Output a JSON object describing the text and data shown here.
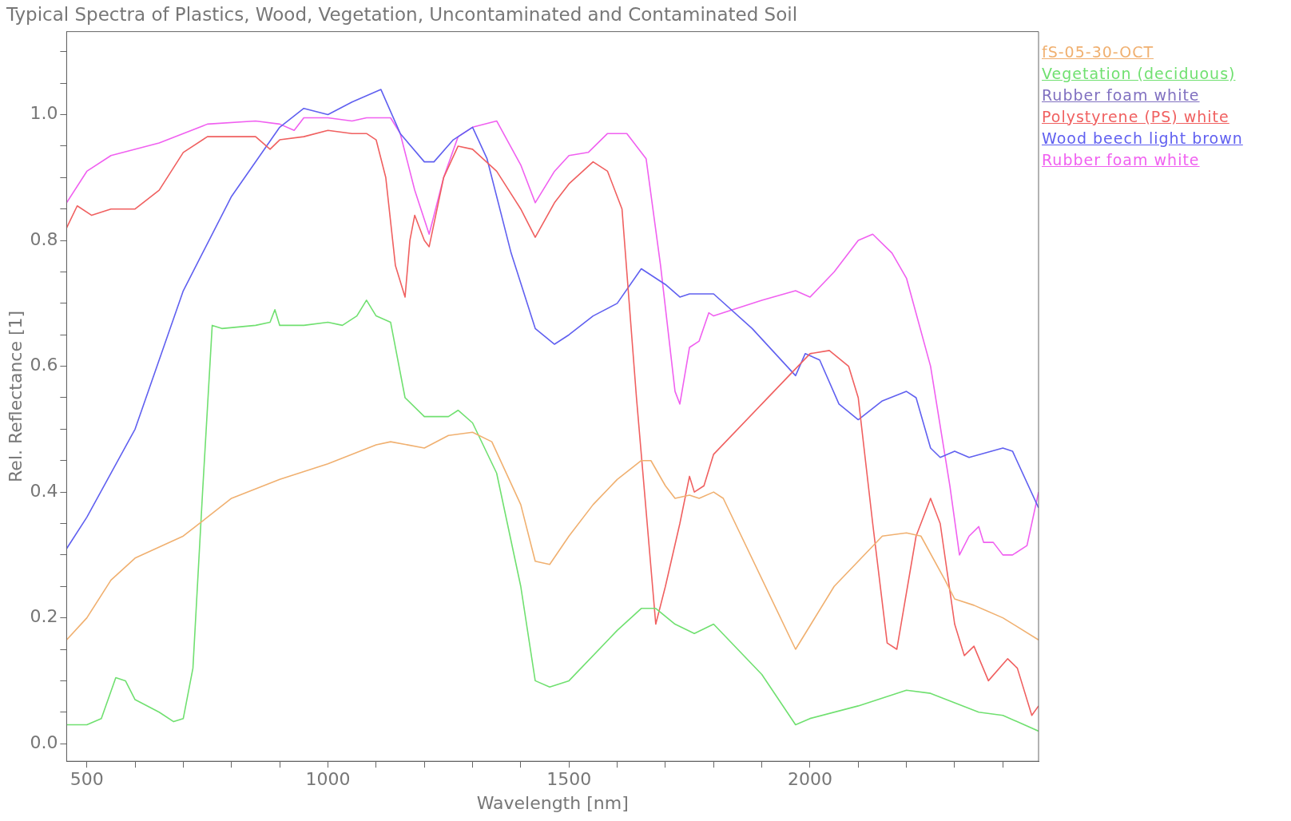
{
  "chart_data": {
    "type": "line",
    "title": "Typical Spectra of Plastics, Wood, Vegetation, Uncontaminated and Contaminated Soil",
    "xlabel": "Wavelength [nm]",
    "ylabel": "Rel. Reflectance [1]",
    "xlim": [
      458,
      2474
    ],
    "ylim": [
      -0.028,
      1.132
    ],
    "xticks": [
      500,
      {
        "value": 600,
        "label": null
      },
      {
        "value": 700,
        "label": null
      },
      {
        "value": 800,
        "label": null
      },
      {
        "value": 900,
        "label": null
      },
      1000,
      {
        "value": 1100,
        "label": null
      },
      {
        "value": 1200,
        "label": null
      },
      {
        "value": 1300,
        "label": null
      },
      {
        "value": 1400,
        "label": null
      },
      1500,
      {
        "value": 1600,
        "label": null
      },
      {
        "value": 1700,
        "label": null
      },
      {
        "value": 1800,
        "label": null
      },
      {
        "value": 1900,
        "label": null
      },
      2000,
      {
        "value": 2100,
        "label": null
      },
      {
        "value": 2200,
        "label": null
      },
      {
        "value": 2300,
        "label": null
      },
      {
        "value": 2400,
        "label": null
      }
    ],
    "yticks": [
      {
        "value": 0,
        "label": "0.0"
      },
      {
        "value": 0.05,
        "label": null
      },
      {
        "value": 0.1,
        "label": null
      },
      {
        "value": 0.15,
        "label": null
      },
      0.2,
      {
        "value": 0.25,
        "label": null
      },
      {
        "value": 0.3,
        "label": null
      },
      {
        "value": 0.35,
        "label": null
      },
      0.4,
      {
        "value": 0.45,
        "label": null
      },
      {
        "value": 0.5,
        "label": null
      },
      {
        "value": 0.55,
        "label": null
      },
      0.6,
      {
        "value": 0.65,
        "label": null
      },
      {
        "value": 0.7,
        "label": null
      },
      {
        "value": 0.75,
        "label": null
      },
      0.8,
      {
        "value": 0.85,
        "label": null
      },
      {
        "value": 0.9,
        "label": null
      },
      {
        "value": 0.95,
        "label": null
      },
      {
        "value": 1,
        "label": "1.0"
      },
      {
        "value": 1.05,
        "label": null
      },
      {
        "value": 1.1,
        "label": null
      }
    ],
    "grid": false,
    "legend": "right",
    "marker": "none",
    "line_style": "solid",
    "series": [
      {
        "name": "fS-05-30-OCT",
        "color": "#f0b070",
        "x": [
          458,
          500,
          550,
          600,
          700,
          800,
          900,
          1000,
          1100,
          1130,
          1200,
          1250,
          1300,
          1340,
          1400,
          1430,
          1460,
          1500,
          1550,
          1600,
          1650,
          1670,
          1700,
          1720,
          1750,
          1770,
          1800,
          1820,
          1970,
          2050,
          2150,
          2200,
          2230,
          2280,
          2300,
          2340,
          2400,
          2474
        ],
        "values": [
          0.165,
          0.2,
          0.26,
          0.295,
          0.33,
          0.39,
          0.42,
          0.445,
          0.475,
          0.48,
          0.47,
          0.49,
          0.495,
          0.48,
          0.38,
          0.29,
          0.285,
          0.33,
          0.38,
          0.42,
          0.45,
          0.45,
          0.41,
          0.39,
          0.395,
          0.39,
          0.4,
          0.39,
          0.15,
          0.25,
          0.33,
          0.335,
          0.33,
          0.26,
          0.23,
          0.22,
          0.2,
          0.165
        ]
      },
      {
        "name": "Vegetation (deciduous)",
        "color": "#70e070",
        "x": [
          458,
          500,
          530,
          560,
          580,
          600,
          650,
          680,
          700,
          720,
          740,
          760,
          780,
          850,
          880,
          890,
          900,
          950,
          1000,
          1030,
          1060,
          1080,
          1100,
          1130,
          1160,
          1200,
          1250,
          1270,
          1300,
          1350,
          1400,
          1430,
          1460,
          1500,
          1600,
          1650,
          1680,
          1720,
          1760,
          1800,
          1900,
          1970,
          2000,
          2100,
          2200,
          2250,
          2350,
          2400,
          2474
        ],
        "values": [
          0.03,
          0.03,
          0.04,
          0.105,
          0.1,
          0.07,
          0.05,
          0.035,
          0.04,
          0.12,
          0.4,
          0.665,
          0.66,
          0.665,
          0.67,
          0.69,
          0.665,
          0.665,
          0.67,
          0.665,
          0.68,
          0.705,
          0.68,
          0.67,
          0.55,
          0.52,
          0.52,
          0.53,
          0.51,
          0.43,
          0.25,
          0.1,
          0.09,
          0.1,
          0.18,
          0.215,
          0.215,
          0.19,
          0.175,
          0.19,
          0.11,
          0.03,
          0.04,
          0.06,
          0.085,
          0.08,
          0.05,
          0.045,
          0.02
        ]
      },
      {
        "name": "Rubber foam white",
        "color": "#8070c0"
      },
      {
        "name": "Polystyrene (PS) white",
        "color": "#f06060",
        "x": [
          458,
          480,
          510,
          550,
          600,
          650,
          700,
          750,
          850,
          880,
          900,
          950,
          1000,
          1050,
          1080,
          1100,
          1120,
          1140,
          1160,
          1170,
          1180,
          1200,
          1210,
          1240,
          1270,
          1300,
          1350,
          1400,
          1430,
          1470,
          1500,
          1550,
          1580,
          1610,
          1640,
          1680,
          1700,
          1730,
          1750,
          1760,
          1780,
          1800,
          1900,
          2000,
          2040,
          2080,
          2100,
          2130,
          2160,
          2180,
          2220,
          2250,
          2270,
          2300,
          2320,
          2340,
          2370,
          2410,
          2430,
          2460,
          2474
        ],
        "values": [
          0.82,
          0.855,
          0.84,
          0.85,
          0.85,
          0.88,
          0.94,
          0.965,
          0.965,
          0.945,
          0.96,
          0.965,
          0.975,
          0.97,
          0.97,
          0.96,
          0.9,
          0.76,
          0.71,
          0.8,
          0.84,
          0.8,
          0.79,
          0.9,
          0.95,
          0.945,
          0.91,
          0.85,
          0.805,
          0.86,
          0.89,
          0.925,
          0.91,
          0.85,
          0.55,
          0.19,
          0.25,
          0.35,
          0.425,
          0.4,
          0.41,
          0.46,
          0.54,
          0.62,
          0.625,
          0.6,
          0.55,
          0.35,
          0.16,
          0.15,
          0.33,
          0.39,
          0.35,
          0.19,
          0.14,
          0.155,
          0.1,
          0.135,
          0.12,
          0.045,
          0.06
        ]
      },
      {
        "name": "Wood beech light brown",
        "color": "#6060f0",
        "x": [
          458,
          500,
          600,
          700,
          800,
          900,
          950,
          1000,
          1050,
          1110,
          1150,
          1200,
          1220,
          1260,
          1300,
          1330,
          1380,
          1430,
          1470,
          1500,
          1550,
          1600,
          1650,
          1700,
          1730,
          1750,
          1800,
          1880,
          1970,
          1990,
          2020,
          2060,
          2100,
          2150,
          2200,
          2220,
          2250,
          2270,
          2300,
          2330,
          2400,
          2420,
          2474
        ],
        "values": [
          0.31,
          0.36,
          0.5,
          0.72,
          0.87,
          0.98,
          1.01,
          1.0,
          1.02,
          1.04,
          0.97,
          0.925,
          0.925,
          0.96,
          0.98,
          0.93,
          0.78,
          0.66,
          0.635,
          0.65,
          0.68,
          0.7,
          0.755,
          0.73,
          0.71,
          0.715,
          0.715,
          0.66,
          0.585,
          0.62,
          0.61,
          0.54,
          0.515,
          0.545,
          0.56,
          0.55,
          0.47,
          0.455,
          0.465,
          0.455,
          0.47,
          0.465,
          0.375
        ]
      },
      {
        "name": "Rubber foam white",
        "color": "#f060f0",
        "x": [
          458,
          500,
          550,
          650,
          750,
          850,
          900,
          930,
          950,
          1000,
          1050,
          1080,
          1130,
          1150,
          1180,
          1210,
          1240,
          1270,
          1300,
          1350,
          1400,
          1430,
          1470,
          1500,
          1540,
          1580,
          1620,
          1660,
          1690,
          1720,
          1730,
          1750,
          1770,
          1790,
          1800,
          1900,
          1970,
          2000,
          2050,
          2100,
          2130,
          2170,
          2200,
          2250,
          2290,
          2310,
          2330,
          2350,
          2360,
          2380,
          2400,
          2420,
          2450,
          2474
        ],
        "values": [
          0.86,
          0.91,
          0.935,
          0.955,
          0.985,
          0.99,
          0.985,
          0.975,
          0.995,
          0.995,
          0.99,
          0.995,
          0.995,
          0.97,
          0.88,
          0.81,
          0.9,
          0.965,
          0.98,
          0.99,
          0.92,
          0.86,
          0.91,
          0.935,
          0.94,
          0.97,
          0.97,
          0.93,
          0.76,
          0.56,
          0.54,
          0.63,
          0.64,
          0.685,
          0.68,
          0.705,
          0.72,
          0.71,
          0.75,
          0.8,
          0.81,
          0.78,
          0.74,
          0.6,
          0.41,
          0.3,
          0.33,
          0.345,
          0.32,
          0.32,
          0.3,
          0.3,
          0.315,
          0.4
        ]
      }
    ]
  }
}
